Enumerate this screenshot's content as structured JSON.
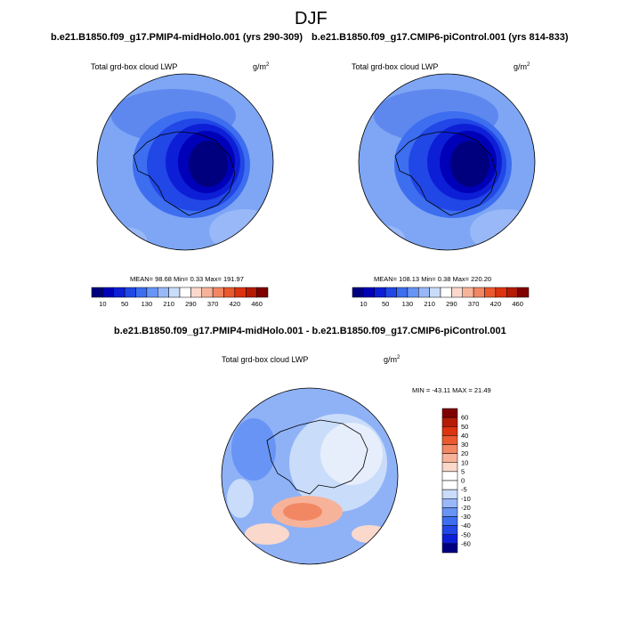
{
  "season": "DJF",
  "panels": [
    {
      "case_title": "b.e21.B1850.f09_g17.PMIP4-midHolo.001 (yrs 290-309)",
      "variable": "Total grd-box cloud LWP",
      "units_base": "g/m",
      "units_exp": "2",
      "stats": {
        "mean_label": "MEAN=",
        "mean": "98.68",
        "min_label": "Min=",
        "min": "0.33",
        "max_label": "Max=",
        "max": "191.97"
      }
    },
    {
      "case_title": "b.e21.B1850.f09_g17.CMIP6-piControl.001 (yrs 814-833)",
      "variable": "Total grd-box cloud LWP",
      "units_base": "g/m",
      "units_exp": "2",
      "stats": {
        "mean_label": "MEAN=",
        "mean": "108.13",
        "min_label": "Min=",
        "min": "0.38",
        "max_label": "Max=",
        "max": "220.20"
      }
    }
  ],
  "abs_colorbar": {
    "labels": [
      "10",
      "50",
      "130",
      "210",
      "290",
      "370",
      "420",
      "460"
    ],
    "colors": [
      "#00007f",
      "#0000b8",
      "#0d1fd6",
      "#2147e6",
      "#3d6ef0",
      "#6794f5",
      "#98b8f8",
      "#c9dcfa",
      "#ffffff",
      "#fbd8cc",
      "#f7b39a",
      "#f28763",
      "#ea5a2e",
      "#dc3410",
      "#b41c04",
      "#7f0000"
    ]
  },
  "diff": {
    "title": "b.e21.B1850.f09_g17.PMIP4-midHolo.001 - b.e21.B1850.f09_g17.CMIP6-piControl.001",
    "variable": "Total grd-box cloud LWP",
    "units_base": "g/m",
    "units_exp": "2",
    "minmax": "MIN = -43.11 MAX =  21.49",
    "colorbar_labels": [
      "60",
      "50",
      "40",
      "30",
      "20",
      "10",
      "5",
      "0",
      "-5",
      "-10",
      "-20",
      "-30",
      "-40",
      "-50",
      "-60"
    ],
    "colorbar_colors": [
      "#7f0000",
      "#b41c04",
      "#dc3410",
      "#ea5a2e",
      "#f28763",
      "#f7b39a",
      "#fbd8cc",
      "#ffffff",
      "#ffffff",
      "#c9dcfa",
      "#98b8f8",
      "#6794f5",
      "#3d6ef0",
      "#2147e6",
      "#0d1fd6",
      "#00007f"
    ]
  },
  "colors": {
    "ocean_mid": "#6f9bf2",
    "ice_dark": "#000a6e",
    "diff_bg": "#8fb2f7",
    "coast": "#000000"
  }
}
